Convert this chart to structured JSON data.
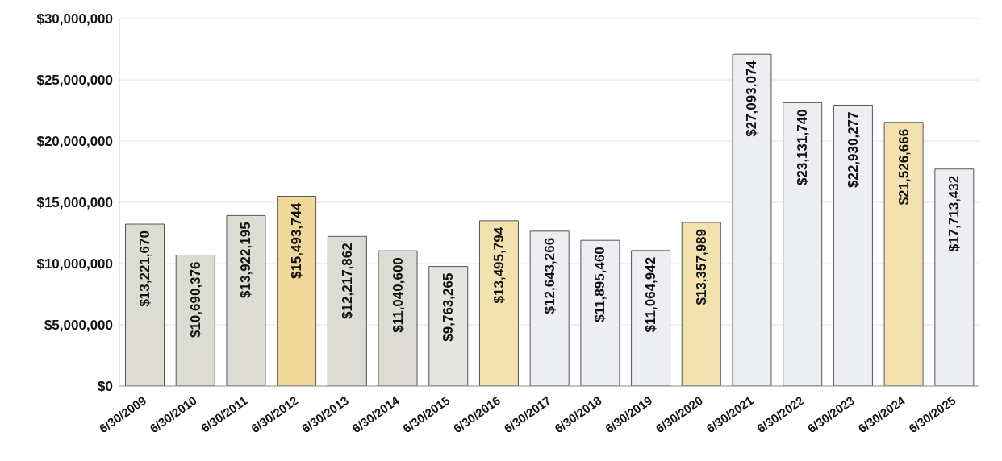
{
  "chart_data": {
    "type": "bar",
    "categories": [
      "6/30/2009",
      "6/30/2010",
      "6/30/2011",
      "6/30/2012",
      "6/30/2013",
      "6/30/2014",
      "6/30/2015",
      "6/30/2016",
      "6/30/2017",
      "6/30/2018",
      "6/30/2019",
      "6/30/2020",
      "6/30/2021",
      "6/30/2022",
      "6/30/2023",
      "6/30/2024",
      "6/30/2025"
    ],
    "values": [
      13221670,
      10690376,
      13922195,
      15493744,
      12217862,
      11040600,
      9763265,
      13495794,
      12643266,
      11895460,
      11064942,
      13357989,
      27093074,
      23131740,
      22930277,
      21526666,
      17713432
    ],
    "value_labels": [
      "$13,221,670",
      "$10,690,376",
      "$13,922,195",
      "$15,493,744",
      "$12,217,862",
      "$11,040,600",
      "$9,763,265",
      "$13,495,794",
      "$12,643,266",
      "$11,895,460",
      "$11,064,942",
      "$13,357,989",
      "$27,093,074",
      "$23,131,740",
      "$22,930,277",
      "$21,526,666",
      "$17,713,432"
    ],
    "colors": [
      "#dcdcd4",
      "#dcdcd4",
      "#dcdcd4",
      "#efd899",
      "#dcdcd4",
      "#dcdcd4",
      "#e4e4e0",
      "#f3e2b0",
      "#eceef2",
      "#eceef2",
      "#eceef2",
      "#f3e2b0",
      "#eceef2",
      "#eceef2",
      "#eceef2",
      "#f3e2b0",
      "#eceef2"
    ],
    "ylim": [
      0,
      30000000
    ],
    "yticks": [
      {
        "value": 0,
        "label": "$0"
      },
      {
        "value": 5000000,
        "label": "$5,000,000"
      },
      {
        "value": 10000000,
        "label": "$10,000,000"
      },
      {
        "value": 15000000,
        "label": "$15,000,000"
      },
      {
        "value": 20000000,
        "label": "$20,000,000"
      },
      {
        "value": 25000000,
        "label": "$25,000,000"
      },
      {
        "value": 30000000,
        "label": "$30,000,000"
      }
    ],
    "grid": "y"
  }
}
